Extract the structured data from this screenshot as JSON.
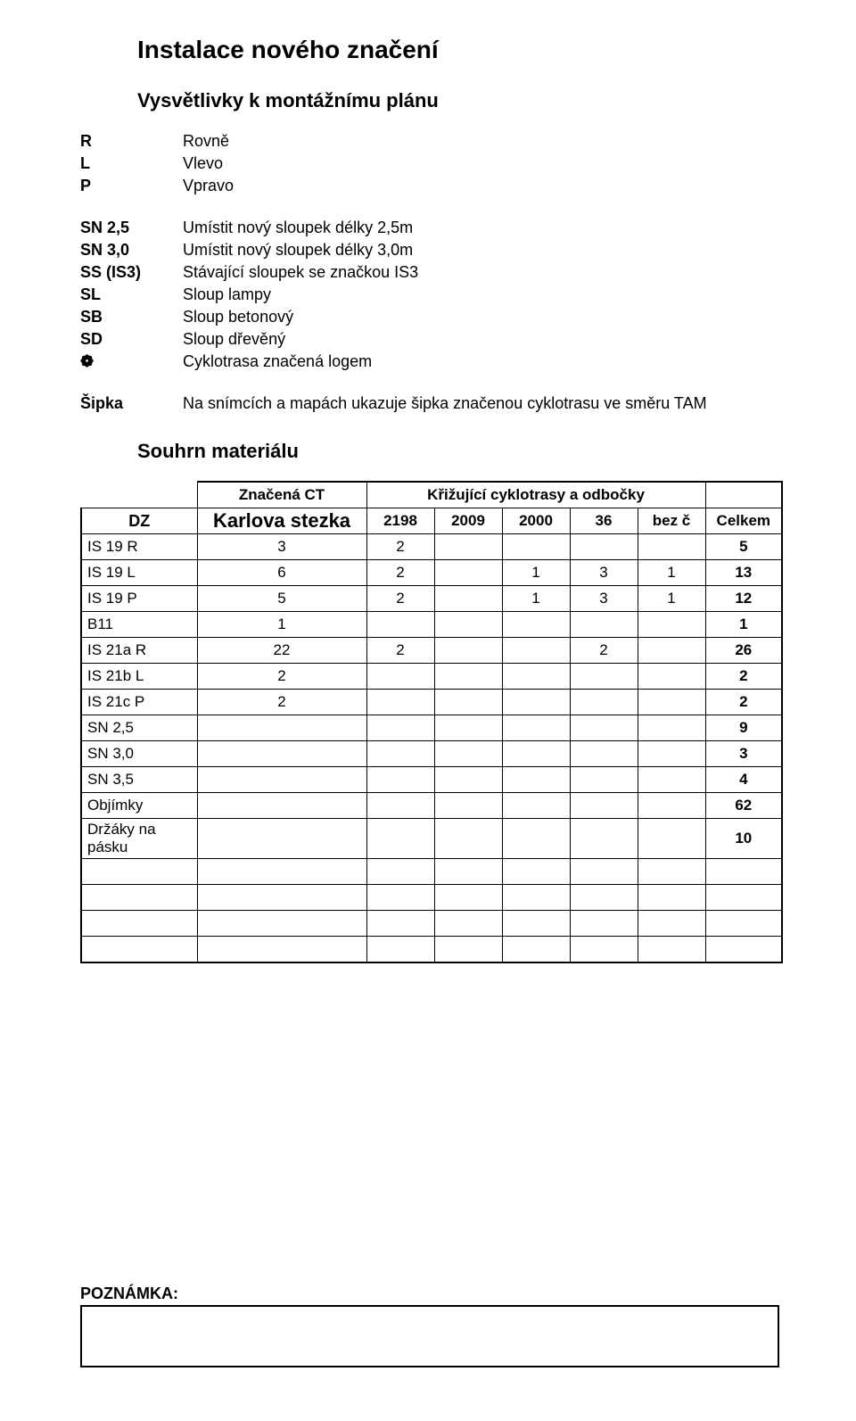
{
  "title": "Instalace nového značení",
  "subtitle": "Vysvětlivky k montážnímu plánu",
  "legend_block1": [
    {
      "code": "R",
      "desc": "Rovně"
    },
    {
      "code": "L",
      "desc": "Vlevo"
    },
    {
      "code": "P",
      "desc": "Vpravo"
    }
  ],
  "legend_block2": [
    {
      "code": "SN 2,5",
      "desc": "Umístit nový sloupek délky 2,5m"
    },
    {
      "code": "SN 3,0",
      "desc": "Umístit nový sloupek délky 3,0m"
    },
    {
      "code": "SS (IS3)",
      "desc": "Stávající sloupek se značkou IS3"
    },
    {
      "code": "SL",
      "desc": "Sloup lampy"
    },
    {
      "code": "SB",
      "desc": "Sloup betonový"
    },
    {
      "code": "SD",
      "desc": "Sloup dřevěný"
    },
    {
      "code": "❁",
      "desc": "Cyklotrasa značená logem"
    }
  ],
  "legend_block3": [
    {
      "code": "Šipka",
      "desc": "Na snímcích a mapách ukazuje šipka značenou cyklotrasu ve směru TAM"
    }
  ],
  "section2": "Souhrn materiálu",
  "table": {
    "hdr_znacena": "Značená CT",
    "hdr_kriz": "Křižující cyklotrasy a odbočky",
    "hdr_dz": "DZ",
    "hdr_main": "Karlova stezka",
    "hdr_cols": [
      "2198",
      "2009",
      "2000",
      "36",
      "bez č"
    ],
    "hdr_total": "Celkem",
    "rows": [
      {
        "label": "IS 19 R",
        "v": [
          "3",
          "2",
          "",
          "",
          "",
          ""
        ],
        "tot": "5"
      },
      {
        "label": "IS 19 L",
        "v": [
          "6",
          "2",
          "",
          "1",
          "3",
          "1"
        ],
        "tot": "13"
      },
      {
        "label": "IS 19 P",
        "v": [
          "5",
          "2",
          "",
          "1",
          "3",
          "1"
        ],
        "tot": "12"
      },
      {
        "label": "B11",
        "v": [
          "1",
          "",
          "",
          "",
          "",
          ""
        ],
        "tot": "1"
      },
      {
        "label": "IS 21a   R",
        "v": [
          "22",
          "2",
          "",
          "",
          "2",
          ""
        ],
        "tot": "26"
      },
      {
        "label": "IS 21b   L",
        "v": [
          "2",
          "",
          "",
          "",
          "",
          ""
        ],
        "tot": "2"
      },
      {
        "label": "IS 21c   P",
        "v": [
          "2",
          "",
          "",
          "",
          "",
          ""
        ],
        "tot": "2"
      },
      {
        "label": "SN 2,5",
        "v": [
          "",
          "",
          "",
          "",
          "",
          ""
        ],
        "tot": "9"
      },
      {
        "label": "SN 3,0",
        "v": [
          "",
          "",
          "",
          "",
          "",
          ""
        ],
        "tot": "3"
      },
      {
        "label": "SN 3,5",
        "v": [
          "",
          "",
          "",
          "",
          "",
          ""
        ],
        "tot": "4"
      },
      {
        "label": "Objímky",
        "v": [
          "",
          "",
          "",
          "",
          "",
          ""
        ],
        "tot": "62"
      },
      {
        "label": "Držáky na pásku",
        "v": [
          "",
          "",
          "",
          "",
          "",
          ""
        ],
        "tot": "10"
      },
      {
        "label": "",
        "v": [
          "",
          "",
          "",
          "",
          "",
          ""
        ],
        "tot": ""
      },
      {
        "label": "",
        "v": [
          "",
          "",
          "",
          "",
          "",
          ""
        ],
        "tot": ""
      },
      {
        "label": "",
        "v": [
          "",
          "",
          "",
          "",
          "",
          ""
        ],
        "tot": ""
      },
      {
        "label": "",
        "v": [
          "",
          "",
          "",
          "",
          "",
          ""
        ],
        "tot": ""
      }
    ]
  },
  "poznamka_label": "POZNÁMKA:"
}
